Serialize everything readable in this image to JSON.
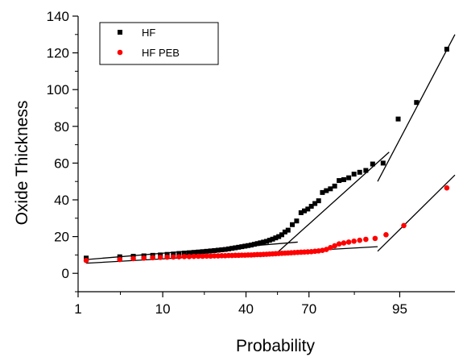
{
  "chart_data": {
    "type": "scatter",
    "title": "",
    "xlabel": "Probability",
    "ylabel": "Oxide Thickness",
    "x_scale": "normal-probability",
    "xlim": [
      1,
      99
    ],
    "ylim": [
      -10,
      140
    ],
    "x_ticks": [
      1,
      10,
      40,
      70,
      95
    ],
    "y_ticks": [
      0,
      20,
      40,
      60,
      80,
      100,
      120,
      140
    ],
    "grid": false,
    "legend_position": "top-left",
    "series": [
      {
        "name": "HF",
        "marker": "square",
        "color": "#000000",
        "points": [
          [
            1.3,
            8.3
          ],
          [
            3.5,
            9.0
          ],
          [
            5.0,
            9.3
          ],
          [
            6.5,
            9.5
          ],
          [
            8.0,
            9.8
          ],
          [
            9.5,
            10.0
          ],
          [
            11,
            10.3
          ],
          [
            12.5,
            10.5
          ],
          [
            14,
            10.8
          ],
          [
            15.5,
            11.0
          ],
          [
            17,
            11.2
          ],
          [
            18.5,
            11.4
          ],
          [
            20,
            11.6
          ],
          [
            21.5,
            11.8
          ],
          [
            23,
            12.0
          ],
          [
            24.5,
            12.2
          ],
          [
            26,
            12.4
          ],
          [
            27.5,
            12.6
          ],
          [
            29,
            12.8
          ],
          [
            30.5,
            13.0
          ],
          [
            32,
            13.3
          ],
          [
            33.5,
            13.6
          ],
          [
            35,
            13.9
          ],
          [
            36.5,
            14.2
          ],
          [
            38,
            14.5
          ],
          [
            39.5,
            14.8
          ],
          [
            41,
            15.1
          ],
          [
            42.5,
            15.4
          ],
          [
            44,
            15.8
          ],
          [
            45.5,
            16.2
          ],
          [
            47,
            16.6
          ],
          [
            48.5,
            17.0
          ],
          [
            50,
            17.4
          ],
          [
            51.5,
            18.0
          ],
          [
            53,
            18.6
          ],
          [
            54.5,
            19.3
          ],
          [
            56,
            20.0
          ],
          [
            57.5,
            21.0
          ],
          [
            59,
            22.5
          ],
          [
            60.5,
            23.5
          ],
          [
            62.5,
            26.5
          ],
          [
            64.5,
            28.5
          ],
          [
            66.5,
            33.0
          ],
          [
            68,
            34.0
          ],
          [
            69.5,
            35.0
          ],
          [
            71,
            36.5
          ],
          [
            72.5,
            38.0
          ],
          [
            74,
            39.5
          ],
          [
            75.5,
            44.0
          ],
          [
            77,
            45.0
          ],
          [
            78.5,
            46.0
          ],
          [
            80,
            47.5
          ],
          [
            81.5,
            50.5
          ],
          [
            83,
            51.0
          ],
          [
            84.5,
            52.0
          ],
          [
            86,
            54.0
          ],
          [
            87.5,
            55.0
          ],
          [
            89,
            56.0
          ],
          [
            90.5,
            59.5
          ],
          [
            92.5,
            60.0
          ],
          [
            94.8,
            84.0
          ],
          [
            96.8,
            93.0
          ],
          [
            98.7,
            122.0
          ]
        ]
      },
      {
        "name": "HF PEB",
        "marker": "circle",
        "color": "#ff0000",
        "points": [
          [
            1.3,
            7.0
          ],
          [
            3.5,
            7.5
          ],
          [
            5.0,
            8.0
          ],
          [
            6.5,
            8.3
          ],
          [
            8.0,
            8.5
          ],
          [
            9.5,
            8.7
          ],
          [
            11,
            8.8
          ],
          [
            12.5,
            8.9
          ],
          [
            14,
            9.0
          ],
          [
            15.5,
            9.1
          ],
          [
            17,
            9.1
          ],
          [
            18.5,
            9.2
          ],
          [
            20,
            9.3
          ],
          [
            21.5,
            9.3
          ],
          [
            23,
            9.4
          ],
          [
            24.5,
            9.4
          ],
          [
            26,
            9.5
          ],
          [
            27.5,
            9.5
          ],
          [
            29,
            9.6
          ],
          [
            30.5,
            9.6
          ],
          [
            32,
            9.7
          ],
          [
            33.5,
            9.7
          ],
          [
            35,
            9.8
          ],
          [
            36.5,
            9.8
          ],
          [
            38,
            9.9
          ],
          [
            39.5,
            9.9
          ],
          [
            41,
            10.0
          ],
          [
            42.5,
            10.0
          ],
          [
            44,
            10.1
          ],
          [
            45.5,
            10.2
          ],
          [
            47,
            10.2
          ],
          [
            48.5,
            10.3
          ],
          [
            50,
            10.4
          ],
          [
            51.5,
            10.5
          ],
          [
            53,
            10.6
          ],
          [
            54.5,
            10.7
          ],
          [
            56,
            10.8
          ],
          [
            57.5,
            10.9
          ],
          [
            59,
            11.0
          ],
          [
            60.5,
            11.1
          ],
          [
            62,
            11.2
          ],
          [
            63.5,
            11.3
          ],
          [
            65,
            11.4
          ],
          [
            66.5,
            11.5
          ],
          [
            68,
            11.6
          ],
          [
            69.5,
            11.7
          ],
          [
            71,
            11.8
          ],
          [
            72.5,
            12.0
          ],
          [
            74,
            12.2
          ],
          [
            75.5,
            12.5
          ],
          [
            77,
            13.0
          ],
          [
            78.5,
            14.0
          ],
          [
            80,
            15.0
          ],
          [
            81.5,
            16.0
          ],
          [
            83,
            16.5
          ],
          [
            84.5,
            17.0
          ],
          [
            86,
            17.5
          ],
          [
            87.5,
            18.0
          ],
          [
            89,
            18.5
          ],
          [
            91,
            19.0
          ],
          [
            93,
            21.0
          ],
          [
            95.5,
            26.0
          ],
          [
            98.7,
            46.5
          ]
        ]
      }
    ],
    "fit_lines": [
      {
        "color": "#000000",
        "from": [
          1.3,
          7.5
        ],
        "to": [
          65,
          17.0
        ]
      },
      {
        "color": "#000000",
        "from": [
          55,
          11.0
        ],
        "to": [
          93.5,
          66.0
        ]
      },
      {
        "color": "#000000",
        "from": [
          91.5,
          50.0
        ],
        "to": [
          99,
          130.0
        ]
      },
      {
        "color": "#000000",
        "from": [
          1.3,
          5.5
        ],
        "to": [
          91.5,
          14.5
        ]
      },
      {
        "color": "#000000",
        "from": [
          91.5,
          12.0
        ],
        "to": [
          99,
          53.5
        ]
      }
    ]
  }
}
